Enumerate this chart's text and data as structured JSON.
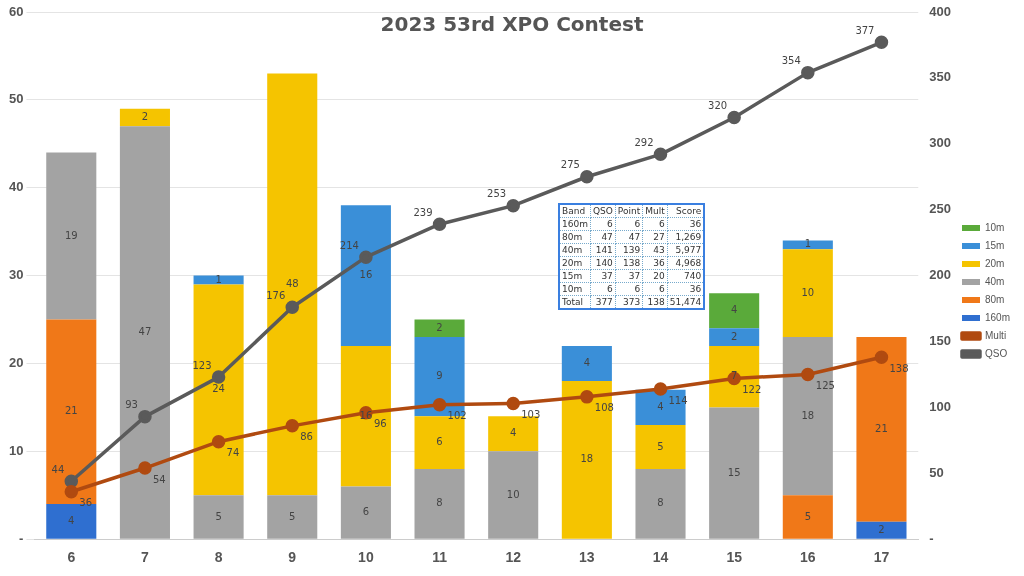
{
  "chart_data": {
    "type": "bar",
    "title": "2023 53rd XPO Contest",
    "stacked": true,
    "categories": [
      "6",
      "7",
      "8",
      "9",
      "10",
      "11",
      "12",
      "13",
      "14",
      "15",
      "16",
      "17"
    ],
    "series": [
      {
        "name": "160m",
        "color": "#2f6fd0",
        "values": [
          4,
          null,
          null,
          null,
          null,
          null,
          null,
          null,
          null,
          null,
          null,
          2
        ]
      },
      {
        "name": "80m",
        "color": "#f07818",
        "values": [
          21,
          null,
          null,
          null,
          null,
          null,
          null,
          null,
          null,
          null,
          5,
          21
        ]
      },
      {
        "name": "40m",
        "color": "#a3a3a3",
        "values": [
          19,
          47,
          5,
          5,
          6,
          8,
          10,
          null,
          8,
          15,
          18,
          null
        ]
      },
      {
        "name": "20m",
        "color": "#f5c400",
        "values": [
          null,
          2,
          24,
          48,
          16,
          6,
          4,
          18,
          5,
          7,
          10,
          null
        ]
      },
      {
        "name": "15m",
        "color": "#3a8fd8",
        "values": [
          null,
          null,
          1,
          null,
          16,
          9,
          null,
          4,
          4,
          2,
          1,
          null
        ]
      },
      {
        "name": "10m",
        "color": "#5aaa3a",
        "values": [
          null,
          null,
          null,
          null,
          null,
          2,
          null,
          null,
          null,
          4,
          null,
          null
        ]
      },
      {
        "name": "Multi",
        "type": "line",
        "axis": "y2",
        "color": "#b04a10",
        "marker": "circle",
        "values": [
          36,
          54,
          74,
          86,
          96,
          102,
          103,
          108,
          114,
          122,
          125,
          138
        ]
      },
      {
        "name": "QSO",
        "type": "line",
        "axis": "y2",
        "color": "#5a5a5a",
        "marker": "circle",
        "values": [
          44,
          93,
          123,
          176,
          214,
          239,
          253,
          275,
          292,
          320,
          354,
          377
        ]
      }
    ],
    "ylim": [
      0,
      60
    ],
    "yticks": [
      {
        "value": 0,
        "label": "-"
      },
      10,
      20,
      30,
      40,
      50,
      60
    ],
    "y2lim": [
      0,
      400
    ],
    "y2ticks": [
      {
        "value": 0,
        "label": "-"
      },
      50,
      100,
      150,
      200,
      250,
      300,
      350,
      400
    ],
    "grid": "y",
    "legend": "right",
    "data_labels": true,
    "annotations": [
      "Band QSO Point Mult Score",
      "160m 6 6 6 36",
      "80m 47 47 27 1,269",
      "40m 141 139 43 5,977",
      "20m 140 138 36 4,968",
      "15m 37 37 20 740",
      "10m 6 6 6 36",
      "Total 377 373 138 51,474"
    ]
  }
}
